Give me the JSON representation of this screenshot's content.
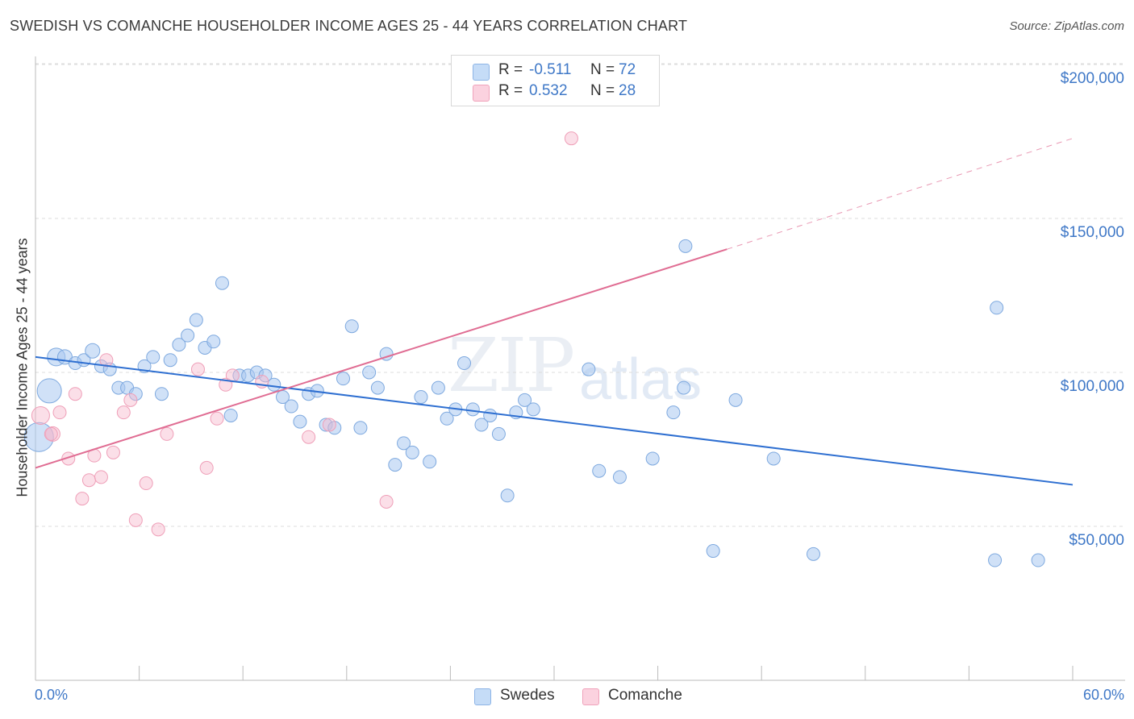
{
  "title": "SWEDISH VS COMANCHE HOUSEHOLDER INCOME AGES 25 - 44 YEARS CORRELATION CHART",
  "source": "Source: ZipAtlas.com",
  "watermark": {
    "part1": "ZIP",
    "part2": "atlas"
  },
  "legend_top": [
    {
      "r_label": "R =",
      "r_value": "-0.511",
      "n_label": "N =",
      "n_value": "72",
      "color": "#a9c8f0"
    },
    {
      "r_label": "R =",
      "r_value": "0.532",
      "n_label": "N =",
      "n_value": "28",
      "color": "#f7b8cb"
    }
  ],
  "legend_bottom": [
    {
      "label": "Swedes",
      "color": "#a9c8f0"
    },
    {
      "label": "Comanche",
      "color": "#f7b8cb"
    }
  ],
  "colors": {
    "blue_line": "#2e6fd1",
    "pink_line": "#e06d93",
    "blue_fill": "#a9c8f0",
    "pink_fill": "#f7b8cb",
    "tick_text": "#3f78c7"
  },
  "chart_data": {
    "type": "scatter",
    "title": "SWEDISH VS COMANCHE HOUSEHOLDER INCOME AGES 25 - 44 YEARS CORRELATION CHART",
    "xlabel": "",
    "ylabel": "Householder Income Ages 25 - 44 years",
    "xlim": [
      0,
      60
    ],
    "ylim": [
      0,
      210000
    ],
    "x_tick_labels": [
      "0.0%",
      "60.0%"
    ],
    "y_ticks": [
      50000,
      100000,
      150000,
      200000
    ],
    "y_tick_labels": [
      "$50,000",
      "$100,000",
      "$150,000",
      "$200,000"
    ],
    "grid": true,
    "legend_placement": "bottom",
    "series": [
      {
        "name": "Swedes",
        "r": -0.511,
        "n": 72,
        "trend": {
          "x": [
            0,
            60
          ],
          "y": [
            105000,
            63500
          ]
        },
        "points": [
          [
            0.2,
            79000,
            18
          ],
          [
            0.8,
            94000,
            15
          ],
          [
            1.2,
            105000,
            11
          ],
          [
            1.7,
            105000,
            9
          ],
          [
            2.3,
            103000,
            8
          ],
          [
            2.8,
            104000,
            8
          ],
          [
            3.3,
            107000,
            9
          ],
          [
            3.8,
            102000,
            8
          ],
          [
            4.3,
            101000,
            8
          ],
          [
            4.8,
            95000,
            8
          ],
          [
            5.3,
            95000,
            8
          ],
          [
            5.8,
            93000,
            8
          ],
          [
            6.3,
            102000,
            8
          ],
          [
            6.8,
            105000,
            8
          ],
          [
            7.3,
            93000,
            8
          ],
          [
            7.8,
            104000,
            8
          ],
          [
            8.3,
            109000,
            8
          ],
          [
            8.8,
            112000,
            8
          ],
          [
            9.3,
            117000,
            8
          ],
          [
            9.8,
            108000,
            8
          ],
          [
            10.3,
            110000,
            8
          ],
          [
            10.8,
            129000,
            8
          ],
          [
            11.3,
            86000,
            8
          ],
          [
            11.8,
            99000,
            8
          ],
          [
            12.3,
            99000,
            8
          ],
          [
            12.8,
            100000,
            8
          ],
          [
            13.3,
            99000,
            8
          ],
          [
            13.8,
            96000,
            8
          ],
          [
            14.3,
            92000,
            8
          ],
          [
            14.8,
            89000,
            8
          ],
          [
            15.3,
            84000,
            8
          ],
          [
            15.8,
            93000,
            8
          ],
          [
            16.3,
            94000,
            8
          ],
          [
            16.8,
            83000,
            8
          ],
          [
            17.3,
            82000,
            8
          ],
          [
            17.8,
            98000,
            8
          ],
          [
            18.3,
            115000,
            8
          ],
          [
            18.8,
            82000,
            8
          ],
          [
            19.3,
            100000,
            8
          ],
          [
            19.8,
            95000,
            8
          ],
          [
            20.3,
            106000,
            8
          ],
          [
            20.8,
            70000,
            8
          ],
          [
            21.3,
            77000,
            8
          ],
          [
            21.8,
            74000,
            8
          ],
          [
            22.3,
            92000,
            8
          ],
          [
            22.8,
            71000,
            8
          ],
          [
            23.3,
            95000,
            8
          ],
          [
            23.8,
            85000,
            8
          ],
          [
            24.3,
            88000,
            8
          ],
          [
            24.8,
            103000,
            8
          ],
          [
            25.3,
            88000,
            8
          ],
          [
            25.8,
            83000,
            8
          ],
          [
            26.3,
            86000,
            8
          ],
          [
            26.8,
            80000,
            8
          ],
          [
            27.3,
            60000,
            8
          ],
          [
            27.8,
            87000,
            8
          ],
          [
            28.3,
            91000,
            8
          ],
          [
            28.8,
            88000,
            8
          ],
          [
            32.0,
            101000,
            8
          ],
          [
            32.6,
            68000,
            8
          ],
          [
            33.8,
            66000,
            8
          ],
          [
            35.7,
            72000,
            8
          ],
          [
            36.9,
            87000,
            8
          ],
          [
            37.5,
            95000,
            8
          ],
          [
            37.6,
            141000,
            8
          ],
          [
            39.2,
            42000,
            8
          ],
          [
            40.5,
            91000,
            8
          ],
          [
            42.7,
            72000,
            8
          ],
          [
            45.0,
            41000,
            8
          ],
          [
            55.6,
            121000,
            8
          ],
          [
            55.5,
            39000,
            8
          ],
          [
            58.0,
            39000,
            8
          ]
        ]
      },
      {
        "name": "Comanche",
        "r": 0.532,
        "n": 28,
        "trend": {
          "x": [
            0,
            40
          ],
          "y": [
            69000,
            140000
          ]
        },
        "trend_extension": {
          "x": [
            40,
            60
          ],
          "y": [
            140000,
            176000
          ]
        },
        "points": [
          [
            0.3,
            86000,
            11
          ],
          [
            1.0,
            80000,
            9
          ],
          [
            1.4,
            87000,
            8
          ],
          [
            1.9,
            72000,
            8
          ],
          [
            2.3,
            93000,
            8
          ],
          [
            2.7,
            59000,
            8
          ],
          [
            3.1,
            65000,
            8
          ],
          [
            3.4,
            73000,
            8
          ],
          [
            3.8,
            66000,
            8
          ],
          [
            4.1,
            104000,
            8
          ],
          [
            4.5,
            74000,
            8
          ],
          [
            5.1,
            87000,
            8
          ],
          [
            5.5,
            91000,
            8
          ],
          [
            5.8,
            52000,
            8
          ],
          [
            6.4,
            64000,
            8
          ],
          [
            7.1,
            49000,
            8
          ],
          [
            7.6,
            80000,
            8
          ],
          [
            9.4,
            101000,
            8
          ],
          [
            9.9,
            69000,
            8
          ],
          [
            10.5,
            85000,
            8
          ],
          [
            11.0,
            96000,
            8
          ],
          [
            11.4,
            99000,
            8
          ],
          [
            13.1,
            97000,
            8
          ],
          [
            15.8,
            79000,
            8
          ],
          [
            17.0,
            83000,
            8
          ],
          [
            20.3,
            58000,
            8
          ],
          [
            31.0,
            176000,
            8
          ],
          [
            0.9,
            80000,
            8
          ]
        ]
      }
    ]
  }
}
